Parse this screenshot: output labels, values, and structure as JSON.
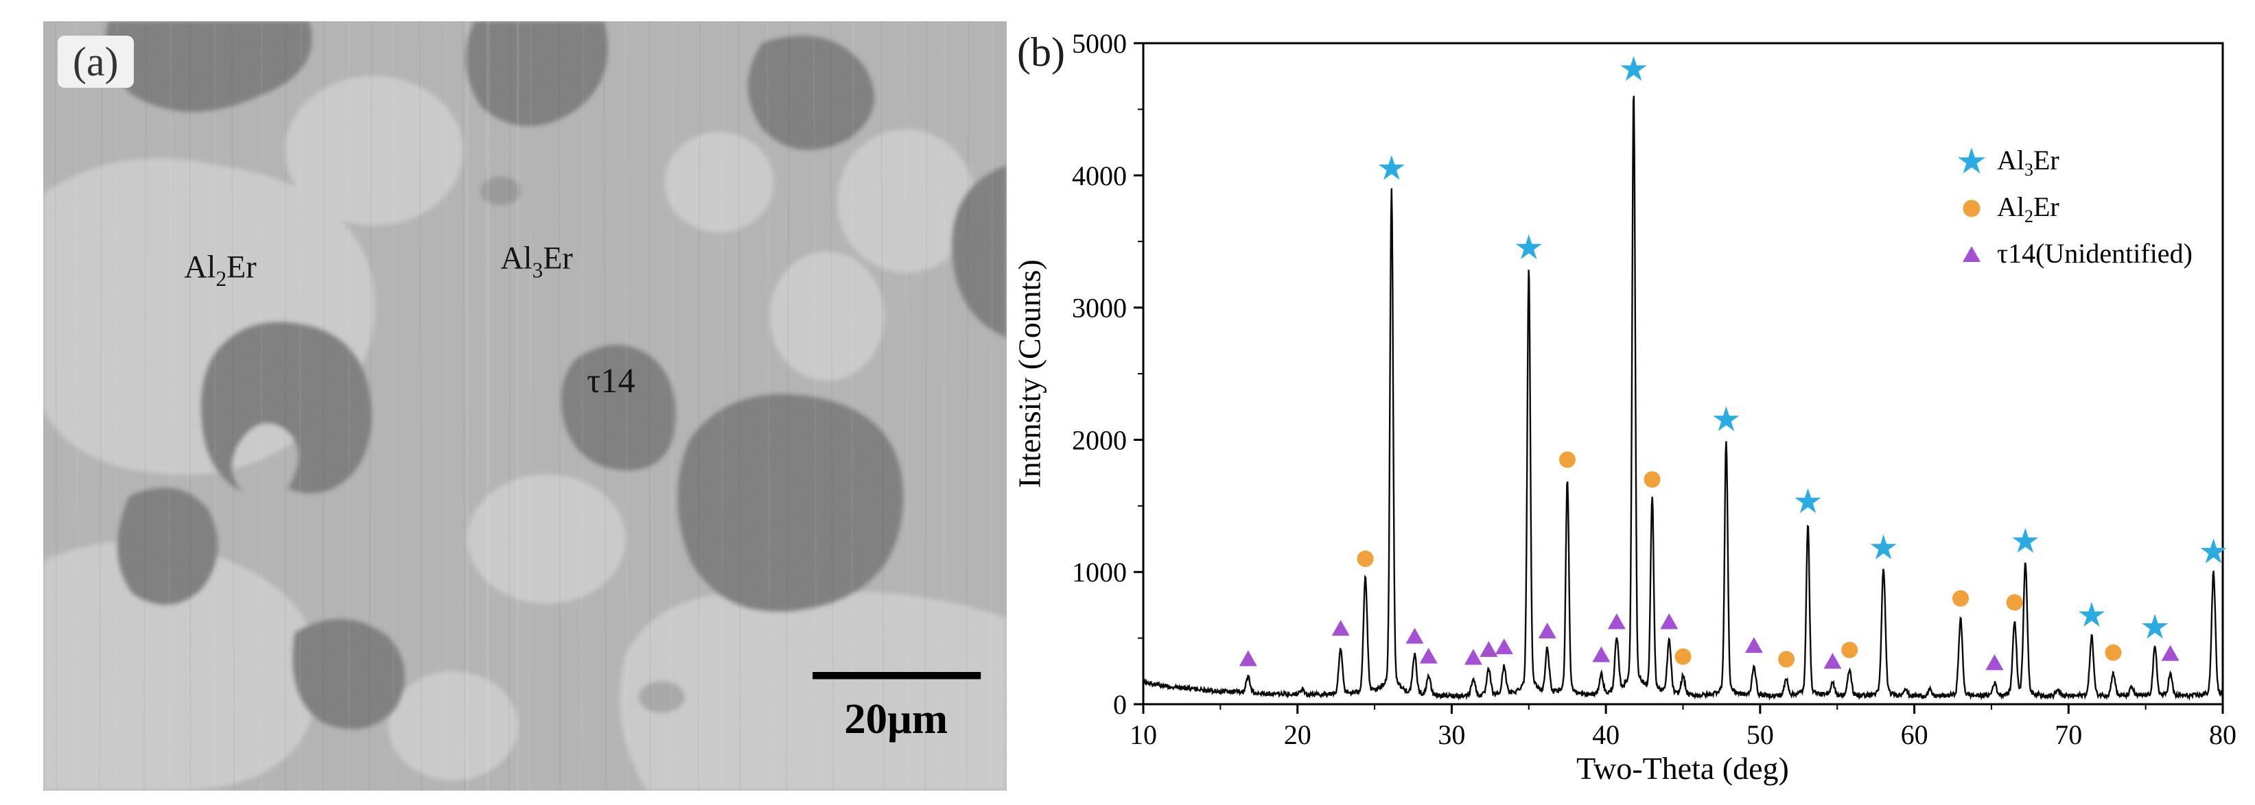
{
  "figure": {
    "panel_a": {
      "label": "(a)",
      "labels": {
        "al2er": {
          "pre": "Al",
          "sub": "2",
          "post": "Er"
        },
        "al3er": {
          "pre": "Al",
          "sub": "3",
          "post": "Er"
        },
        "tau14": "τ14"
      },
      "scale_bar_text": "20μm",
      "phase_colors": {
        "matrix": "#b4b4b4",
        "light": "#cccccc",
        "dark": "#7d7d7d"
      }
    },
    "panel_b": {
      "label": "(b)"
    }
  },
  "chart_data": {
    "type": "line",
    "title": "",
    "xlabel": "Two-Theta (deg)",
    "ylabel": "Intensity (Counts)",
    "xlim": [
      10,
      80
    ],
    "ylim": [
      0,
      5000
    ],
    "x_ticks": [
      10,
      20,
      30,
      40,
      50,
      60,
      70,
      80
    ],
    "y_ticks": [
      0,
      1000,
      2000,
      3000,
      4000,
      5000
    ],
    "grid": false,
    "line_color": "#0a0a0a",
    "legend_position": "upper right",
    "legend": [
      {
        "phase": "Al3Er",
        "marker": "star",
        "color": "#2cabe2",
        "label": {
          "pre": "Al",
          "sub": "3",
          "post": "Er"
        }
      },
      {
        "phase": "Al2Er",
        "marker": "circle",
        "color": "#f0a13c",
        "label": {
          "pre": "Al",
          "sub": "2",
          "post": "Er"
        }
      },
      {
        "phase": "t14",
        "marker": "triangle",
        "color": "#a450d3",
        "label": {
          "pre": "τ14(Unidentified)",
          "sub": "",
          "post": ""
        }
      }
    ],
    "peaks": [
      {
        "two_theta": 16.8,
        "intensity": 190,
        "phase": "t14"
      },
      {
        "two_theta": 20.3,
        "intensity": 100,
        "phase": null
      },
      {
        "two_theta": 22.8,
        "intensity": 420,
        "phase": "t14"
      },
      {
        "two_theta": 24.4,
        "intensity": 950,
        "phase": "Al2Er"
      },
      {
        "two_theta": 26.1,
        "intensity": 3900,
        "phase": "Al3Er"
      },
      {
        "two_theta": 27.6,
        "intensity": 360,
        "phase": "t14"
      },
      {
        "two_theta": 28.5,
        "intensity": 210,
        "phase": "t14"
      },
      {
        "two_theta": 31.4,
        "intensity": 200,
        "phase": "t14"
      },
      {
        "two_theta": 32.4,
        "intensity": 260,
        "phase": "t14"
      },
      {
        "two_theta": 33.4,
        "intensity": 280,
        "phase": "t14"
      },
      {
        "two_theta": 35.0,
        "intensity": 3300,
        "phase": "Al3Er"
      },
      {
        "two_theta": 36.2,
        "intensity": 400,
        "phase": "t14"
      },
      {
        "two_theta": 37.5,
        "intensity": 1700,
        "phase": "Al2Er"
      },
      {
        "two_theta": 39.7,
        "intensity": 220,
        "phase": "t14"
      },
      {
        "two_theta": 40.7,
        "intensity": 470,
        "phase": "t14"
      },
      {
        "two_theta": 41.8,
        "intensity": 4650,
        "phase": "Al3Er"
      },
      {
        "two_theta": 43.0,
        "intensity": 1550,
        "phase": "Al2Er"
      },
      {
        "two_theta": 44.1,
        "intensity": 470,
        "phase": "t14"
      },
      {
        "two_theta": 45.0,
        "intensity": 210,
        "phase": "Al2Er"
      },
      {
        "two_theta": 47.8,
        "intensity": 2000,
        "phase": "Al3Er"
      },
      {
        "two_theta": 49.6,
        "intensity": 290,
        "phase": "t14"
      },
      {
        "two_theta": 51.7,
        "intensity": 190,
        "phase": "Al2Er"
      },
      {
        "two_theta": 53.1,
        "intensity": 1380,
        "phase": "Al3Er"
      },
      {
        "two_theta": 54.7,
        "intensity": 170,
        "phase": "t14"
      },
      {
        "two_theta": 55.8,
        "intensity": 260,
        "phase": "Al2Er"
      },
      {
        "two_theta": 58.0,
        "intensity": 1030,
        "phase": "Al3Er"
      },
      {
        "two_theta": 59.4,
        "intensity": 120,
        "phase": null
      },
      {
        "two_theta": 61.0,
        "intensity": 110,
        "phase": null
      },
      {
        "two_theta": 63.0,
        "intensity": 650,
        "phase": "Al2Er"
      },
      {
        "two_theta": 65.2,
        "intensity": 160,
        "phase": "t14"
      },
      {
        "two_theta": 66.5,
        "intensity": 620,
        "phase": "Al2Er"
      },
      {
        "two_theta": 67.2,
        "intensity": 1080,
        "phase": "Al3Er"
      },
      {
        "two_theta": 69.3,
        "intensity": 110,
        "phase": null
      },
      {
        "two_theta": 71.5,
        "intensity": 520,
        "phase": "Al3Er"
      },
      {
        "two_theta": 72.9,
        "intensity": 240,
        "phase": "Al2Er"
      },
      {
        "two_theta": 74.1,
        "intensity": 130,
        "phase": null
      },
      {
        "two_theta": 75.6,
        "intensity": 430,
        "phase": "Al3Er"
      },
      {
        "two_theta": 76.6,
        "intensity": 230,
        "phase": "t14"
      },
      {
        "two_theta": 79.4,
        "intensity": 1000,
        "phase": "Al3Er"
      }
    ]
  }
}
